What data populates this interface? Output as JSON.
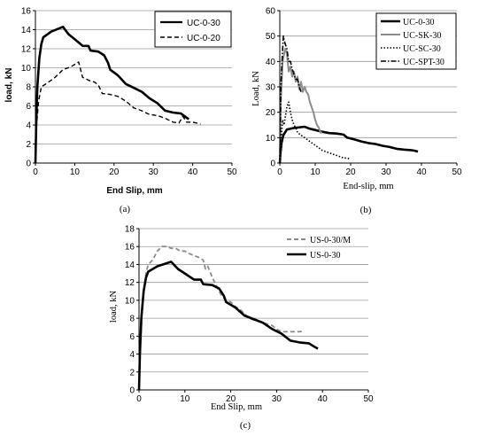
{
  "chart_data": [
    {
      "type": "line",
      "caption": "(a)",
      "xlabel": "End Slip, mm",
      "ylabel": "load, kN",
      "xlim": [
        0,
        50
      ],
      "ylim": [
        0,
        16
      ],
      "xticks": [
        0,
        10,
        20,
        30,
        40,
        50
      ],
      "yticks": [
        0,
        2,
        4,
        6,
        8,
        10,
        12,
        14,
        16
      ],
      "grid": "horizontal",
      "legend": "top-right",
      "series": [
        {
          "name": "UC-0-30",
          "style": "solid",
          "color": "#000000",
          "x": [
            0,
            0.2,
            0.5,
            1,
            1.5,
            2,
            4,
            7,
            8.5,
            10,
            12,
            13.5,
            14,
            16,
            17.5,
            18.5,
            19,
            21,
            23,
            25,
            27,
            29,
            31,
            33,
            35,
            37,
            38,
            39
          ],
          "y": [
            0,
            4,
            8,
            11,
            12.5,
            13.2,
            13.8,
            14.3,
            13.5,
            13,
            12.3,
            12.3,
            11.8,
            11.7,
            11.3,
            10.5,
            9.8,
            9.2,
            8.3,
            7.9,
            7.5,
            6.8,
            6.3,
            5.5,
            5.3,
            5.2,
            4.9,
            4.6
          ]
        },
        {
          "name": "UC-0-20",
          "style": "dashed",
          "color": "#000000",
          "x": [
            0,
            0.3,
            0.8,
            1.5,
            3,
            5,
            7,
            9,
            11,
            12,
            14,
            15,
            16,
            17,
            19,
            21,
            23,
            25,
            27,
            29,
            31,
            33,
            35,
            36.5,
            37.5,
            38.5,
            40,
            42
          ],
          "y": [
            0,
            4,
            6.5,
            8,
            8.4,
            9,
            9.8,
            10.1,
            10.6,
            9,
            8.6,
            8.5,
            8.2,
            7.3,
            7.2,
            7,
            6.5,
            5.8,
            5.5,
            5.1,
            5,
            4.7,
            4.3,
            4.2,
            4.9,
            4.3,
            4.3,
            4.1
          ]
        }
      ]
    },
    {
      "type": "line",
      "caption": "(b)",
      "xlabel": "End-slip, mm",
      "ylabel": "Load, kN",
      "xlim": [
        0,
        50
      ],
      "ylim": [
        0,
        60
      ],
      "xticks": [
        0,
        10,
        20,
        30,
        40,
        50
      ],
      "yticks": [
        0,
        10,
        20,
        30,
        40,
        50,
        60
      ],
      "grid": "horizontal",
      "legend": "top-right",
      "series": [
        {
          "name": "UC-0-30",
          "style": "solid",
          "color": "#000000",
          "x": [
            0,
            0.2,
            0.5,
            1,
            2,
            4,
            7,
            8.5,
            10,
            12,
            14,
            16,
            18,
            19,
            21,
            23,
            25,
            27,
            29,
            31,
            33,
            35,
            37,
            38,
            39
          ],
          "y": [
            0,
            4,
            8,
            11,
            13.2,
            13.8,
            14.3,
            13.5,
            13,
            12.3,
            11.8,
            11.6,
            11.2,
            10,
            9.3,
            8.5,
            7.9,
            7.5,
            6.8,
            6.3,
            5.6,
            5.3,
            5.1,
            4.9,
            4.5
          ]
        },
        {
          "name": "UC-SK-30",
          "style": "solid",
          "color": "#8c8c8c",
          "x": [
            0,
            0.3,
            0.8,
            1.5,
            2,
            2.5,
            3,
            3.5,
            4,
            4.5,
            5,
            5.5,
            6,
            6.5,
            7,
            7.5,
            8,
            8.5,
            9,
            9.5,
            10,
            10.5,
            11,
            11.5,
            12
          ],
          "y": [
            0,
            25,
            40,
            45,
            43,
            36,
            38,
            34,
            36,
            32,
            34,
            29,
            32,
            28,
            30,
            28,
            27,
            24,
            22,
            20,
            17,
            15,
            14,
            12,
            12
          ]
        },
        {
          "name": "UC-SC-30",
          "style": "dotted",
          "color": "#000000",
          "x": [
            0,
            0.3,
            0.8,
            1.2,
            2,
            2.5,
            3,
            3.5,
            4,
            4.5,
            5,
            6,
            7,
            8,
            9,
            10,
            11,
            12,
            13,
            14,
            15,
            16,
            17,
            18,
            19,
            20
          ],
          "y": [
            0,
            8,
            17,
            15,
            22,
            24,
            20,
            17,
            15,
            14,
            12,
            11,
            10,
            9,
            8,
            7,
            6,
            5,
            4.5,
            4,
            3.5,
            3,
            2.5,
            2,
            2,
            1.5
          ]
        },
        {
          "name": "UC-SPT-30",
          "style": "dashdot",
          "color": "#000000",
          "x": [
            0,
            0.3,
            0.7,
            1,
            1.5,
            2,
            2.5,
            3,
            3.5,
            4,
            4.5,
            5,
            5.5,
            6
          ],
          "y": [
            0,
            30,
            42,
            50,
            47,
            45,
            40,
            40,
            37,
            35,
            33,
            33,
            30,
            28
          ]
        }
      ]
    },
    {
      "type": "line",
      "caption": "(c)",
      "xlabel": "End Slip, mm",
      "ylabel": "load, kN",
      "xlim": [
        0,
        50
      ],
      "ylim": [
        0,
        18
      ],
      "xticks": [
        0,
        10,
        20,
        30,
        40,
        50
      ],
      "yticks": [
        0,
        2,
        4,
        6,
        8,
        10,
        12,
        14,
        16,
        18
      ],
      "grid": "horizontal",
      "legend": "top-right",
      "series": [
        {
          "name": "US-0-30/M",
          "style": "dashed",
          "color": "#8c8c8c",
          "x": [
            0,
            0.3,
            0.8,
            1.5,
            2,
            3,
            4,
            5,
            6,
            7,
            8,
            9,
            10,
            11,
            12,
            13,
            14,
            14.5,
            15,
            16,
            17,
            18,
            19,
            20,
            21,
            22,
            23,
            24,
            25,
            27,
            29,
            30,
            31,
            33,
            35,
            36
          ],
          "y": [
            0,
            5,
            10,
            13,
            14,
            14.5,
            15.5,
            16,
            16,
            15.8,
            15.8,
            15.5,
            15.5,
            15.2,
            15,
            14.8,
            14.5,
            13.5,
            13.8,
            12.5,
            11.5,
            10.5,
            10,
            9.8,
            9.3,
            9,
            8.5,
            8,
            7.8,
            7.5,
            7.2,
            6.8,
            6.5,
            6.5,
            6.5,
            6.6
          ]
        },
        {
          "name": "US-0-30",
          "style": "solid",
          "color": "#000000",
          "x": [
            0,
            0.2,
            0.5,
            1,
            1.5,
            2,
            4,
            7,
            8.5,
            10,
            12,
            13.5,
            14,
            16,
            17.5,
            18.5,
            19,
            21,
            23,
            25,
            27,
            29,
            31,
            33,
            35,
            37,
            38,
            39
          ],
          "y": [
            0,
            4,
            8,
            11,
            12.5,
            13.2,
            13.8,
            14.3,
            13.5,
            13,
            12.3,
            12.3,
            11.8,
            11.7,
            11.3,
            10.5,
            9.8,
            9.2,
            8.3,
            7.9,
            7.5,
            6.8,
            6.3,
            5.5,
            5.3,
            5.2,
            4.9,
            4.6
          ]
        }
      ]
    }
  ]
}
